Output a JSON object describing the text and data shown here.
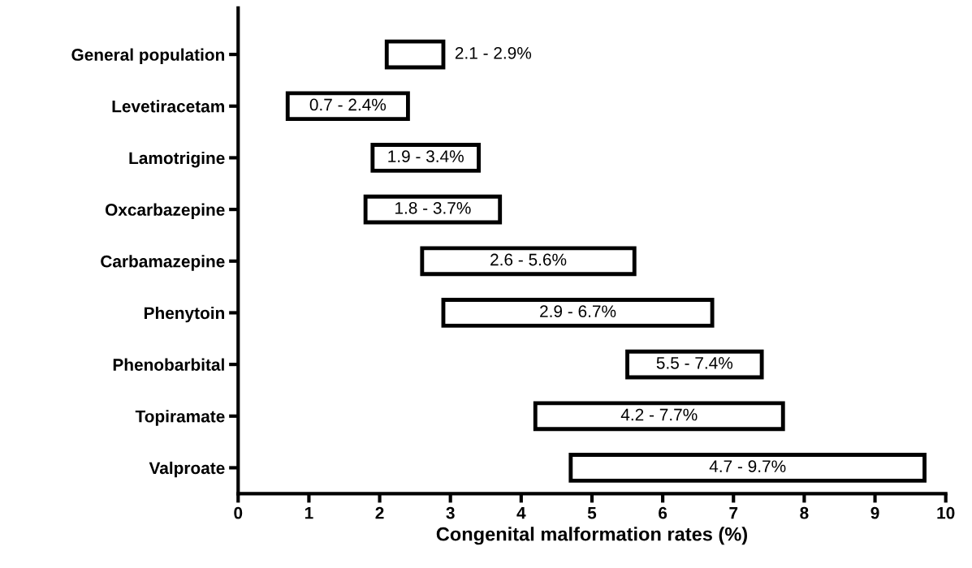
{
  "chart_data": {
    "type": "bar",
    "orientation": "horizontal",
    "xlabel": "Congenital malformation rates (%)",
    "categories": [
      "General population",
      "Levetiracetam",
      "Lamotrigine",
      "Oxcarbazepine",
      "Carbamazepine",
      "Phenytoin",
      "Phenobarbital",
      "Topiramate",
      "Valproate"
    ],
    "base": [
      2.1,
      0.7,
      1.9,
      1.8,
      2.6,
      2.9,
      5.5,
      4.2,
      4.7
    ],
    "values": [
      0.8,
      1.7,
      1.5,
      1.9,
      3.0,
      3.8,
      1.9,
      3.5,
      5.0
    ],
    "annotations": [
      "2.1 - 2.9%",
      "0.7 - 2.4%",
      "1.9 - 3.4%",
      "1.8 - 3.7%",
      "2.6 - 5.6%",
      "2.9 - 6.7%",
      "5.5 - 7.4%",
      "4.2 - 7.7%",
      "4.7 - 9.7%"
    ],
    "color": "#ffffff",
    "xlim": [
      0,
      10
    ],
    "xticks": [
      0,
      1,
      2,
      3,
      4,
      5,
      6,
      7,
      8,
      9,
      10
    ],
    "grid": false,
    "legend": false
  }
}
